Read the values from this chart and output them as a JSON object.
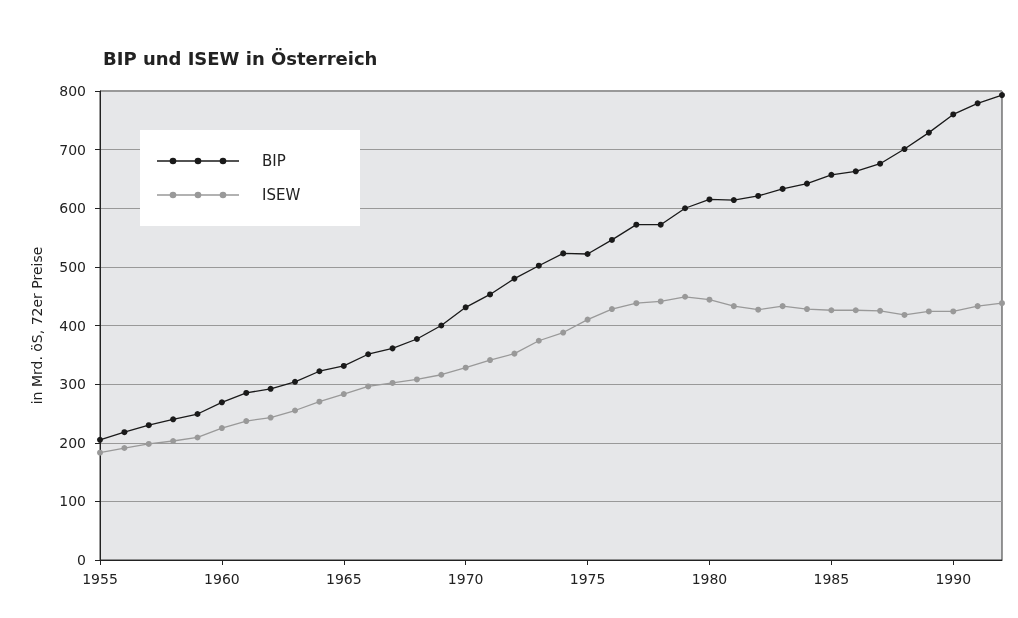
{
  "chart_data": {
    "type": "line",
    "title": "BIP und ISEW in Österreich",
    "ylabel": "in Mrd. öS, 72er Preise",
    "x": [
      1955,
      1956,
      1957,
      1958,
      1959,
      1960,
      1961,
      1962,
      1963,
      1964,
      1965,
      1966,
      1967,
      1968,
      1969,
      1970,
      1971,
      1972,
      1973,
      1974,
      1975,
      1976,
      1977,
      1978,
      1979,
      1980,
      1981,
      1982,
      1983,
      1984,
      1985,
      1986,
      1987,
      1988,
      1989,
      1990,
      1991,
      1992
    ],
    "series": [
      {
        "name": "BIP",
        "color": "#1a1a1a",
        "values": [
          205,
          218,
          230,
          240,
          249,
          269,
          285,
          292,
          304,
          322,
          331,
          351,
          361,
          377,
          400,
          431,
          453,
          480,
          502,
          523,
          522,
          546,
          572,
          572,
          600,
          615,
          614,
          621,
          633,
          642,
          657,
          663,
          676,
          701,
          729,
          760,
          779,
          793
        ]
      },
      {
        "name": "ISEW",
        "color": "#999999",
        "values": [
          183,
          191,
          198,
          203,
          209,
          225,
          237,
          243,
          255,
          270,
          283,
          296,
          302,
          308,
          316,
          328,
          341,
          352,
          374,
          388,
          410,
          428,
          438,
          441,
          449,
          444,
          433,
          427,
          433,
          428,
          426,
          426,
          425,
          418,
          424,
          424,
          433,
          438
        ]
      }
    ],
    "xlim": [
      1955,
      1992
    ],
    "xticks": [
      1955,
      1960,
      1965,
      1970,
      1975,
      1980,
      1985,
      1990
    ],
    "ylim": [
      0,
      800
    ],
    "yticks": [
      0,
      100,
      200,
      300,
      400,
      500,
      600,
      700,
      800
    ],
    "grid": "y",
    "legend": "top left",
    "marker": "circle",
    "line_style": "solid"
  }
}
